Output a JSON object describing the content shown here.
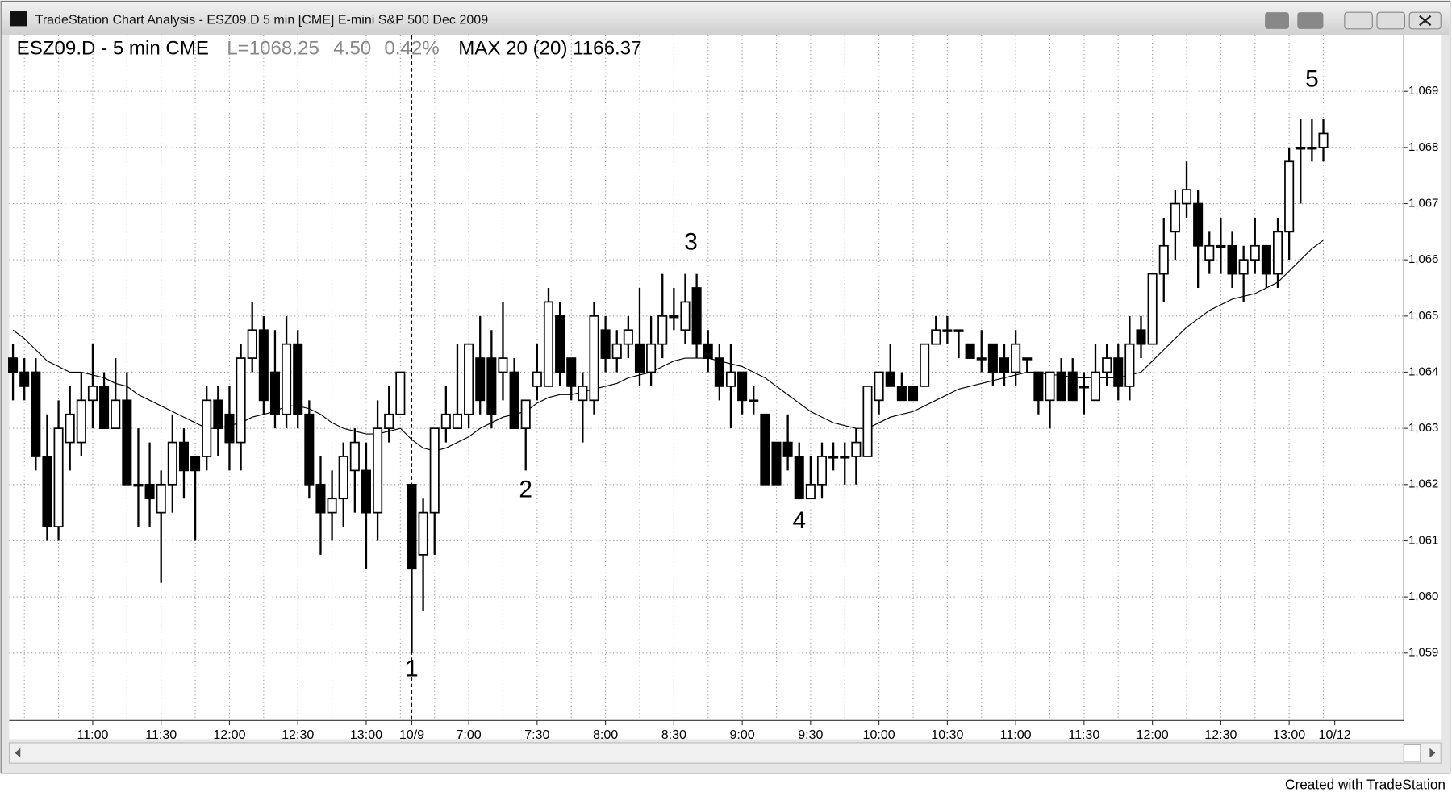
{
  "window": {
    "title": "TradeStation Chart Analysis - ESZ09.D 5 min [CME] E-mini S&P 500 Dec 2009",
    "footer": "Created with TradeStation"
  },
  "chart_data": {
    "type": "candlestick",
    "header": {
      "symbol": "ESZ09.D - 5 min CME",
      "last": "L=1068.25",
      "change": "4.50",
      "change_pct": "0.42%",
      "indicator": "MAX 20 (20) 1166.37"
    },
    "categories": [
      null,
      null,
      null,
      null,
      null,
      null,
      null,
      "11:00",
      null,
      null,
      null,
      null,
      null,
      "11:30",
      null,
      null,
      null,
      null,
      null,
      "12:00",
      null,
      null,
      null,
      null,
      null,
      "12:30",
      null,
      null,
      null,
      null,
      null,
      "13:00",
      null,
      null,
      null,
      "10/9",
      null,
      null,
      null,
      null,
      "7:00",
      null,
      null,
      null,
      null,
      null,
      "7:30",
      null,
      null,
      null,
      null,
      null,
      "8:00",
      null,
      null,
      null,
      null,
      null,
      "8:30",
      null,
      null,
      null,
      null,
      null,
      "9:00",
      null,
      null,
      null,
      null,
      null,
      "9:30",
      null,
      null,
      null,
      null,
      null,
      "10:00",
      null,
      null,
      null,
      null,
      null,
      "10:30",
      null,
      null,
      null,
      null,
      null,
      "11:00",
      null,
      null,
      null,
      null,
      null,
      "11:30",
      null,
      null,
      null,
      null,
      null,
      "12:00",
      null,
      null,
      null,
      null,
      null,
      "12:30",
      null,
      null,
      null,
      null,
      null,
      "13:00",
      null,
      null,
      null,
      "10/12"
    ],
    "ohlc": {
      "open": [
        1064.25,
        1064,
        1064,
        1062.5,
        1061.25,
        1062.75,
        1062.75,
        1063.5,
        1063.75,
        1063,
        1063.5,
        1062,
        1062,
        1061.5,
        1062,
        1062.75,
        1062.5,
        1062.5,
        1063.5,
        1063.25,
        1062.75,
        1064.25,
        1064.75,
        1064,
        1063.25,
        1064.5,
        1063.25,
        1062,
        1061.5,
        1061.75,
        1062.25,
        1062.25,
        1061.5,
        1063,
        1063.25,
        1062,
        1060.75,
        1061.5,
        1063,
        1063,
        1063.25,
        1064.25,
        1064.25,
        1064,
        1064,
        1063,
        1063.75,
        1063.75,
        1065,
        1064.25,
        1063.5,
        1063.5,
        1064.75,
        1064.25,
        1064.5,
        1064.5,
        1064,
        1064.5,
        1065,
        1064.75,
        1065.5,
        1064.5,
        1064.25,
        1063.75,
        1064,
        1063.5,
        1063.25,
        1062.75,
        1062.75,
        1062.5,
        1061.75,
        1062,
        1062.5,
        1062.5,
        1062.5,
        1062.5,
        1063.5,
        1064,
        1063.75,
        1063.75,
        1063.75,
        1064.5,
        1064.75,
        1064.75,
        1064.5,
        1064.25,
        1064.5,
        1064.25,
        1064,
        1064.25,
        1064,
        1063.5,
        1064,
        1064,
        1063.75,
        1063.5,
        1064,
        1064.25,
        1063.75,
        1064.75,
        1064.5,
        1065.75,
        1066.5,
        1067,
        1067,
        1066,
        1066.25,
        1066.25,
        1065.75,
        1066,
        1066.25,
        1065.75,
        1066.5,
        1068,
        1068,
        1068,
        null
      ],
      "high": [
        1064.5,
        1064.25,
        1064.25,
        1063.25,
        1063.5,
        1063.75,
        1064,
        1064.5,
        1064,
        1064.25,
        1064,
        1063,
        1062.75,
        1062.25,
        1063.25,
        1063,
        1062.5,
        1063.75,
        1063.75,
        1063.75,
        1064.5,
        1065.25,
        1065,
        1064.75,
        1065,
        1064.75,
        1063.5,
        1062.5,
        1062.25,
        1062.75,
        1063,
        1062.75,
        1063.5,
        1063.75,
        1064,
        1062,
        1061.75,
        1063,
        1063.75,
        1064.5,
        1064.5,
        1065,
        1064.75,
        1065.25,
        1064.25,
        1063.5,
        1064.5,
        1065.5,
        1065.25,
        1064.25,
        1064,
        1065.25,
        1065,
        1064.75,
        1065,
        1065.5,
        1065,
        1065.75,
        1065.5,
        1065.75,
        1065.75,
        1064.75,
        1064.5,
        1064.5,
        1064,
        1063.75,
        1063.25,
        1062.75,
        1063.25,
        1062.75,
        1062.5,
        1062.75,
        1062.75,
        1062.75,
        1063,
        1063.75,
        1064,
        1064.5,
        1064,
        1063.75,
        1064.5,
        1065,
        1065,
        1064.75,
        1064.5,
        1064.75,
        1064.5,
        1064.5,
        1064.75,
        1064.25,
        1064,
        1064,
        1064.25,
        1064.25,
        1064,
        1064.5,
        1064.5,
        1064.5,
        1065,
        1065,
        1065.75,
        1066.75,
        1067.25,
        1067.75,
        1067.25,
        1066.5,
        1066.75,
        1066.5,
        1066.25,
        1066.75,
        1066.25,
        1066.75,
        1068,
        1068.5,
        1068.5,
        1068.5,
        null
      ],
      "low": [
        1063.5,
        1063.5,
        1062.25,
        1061,
        1061,
        1062.25,
        1062.5,
        1063,
        1063,
        1063,
        1062,
        1061.25,
        1061.25,
        1060.25,
        1061.5,
        1061.75,
        1061,
        1062.25,
        1062.5,
        1062.25,
        1062.25,
        1064,
        1063.25,
        1063,
        1063,
        1063,
        1061.75,
        1060.75,
        1061,
        1061.25,
        1061.5,
        1060.5,
        1061,
        1062.75,
        1063.25,
        1059,
        1059.75,
        1060.75,
        1062.75,
        1063,
        1063,
        1063.25,
        1063,
        1063.5,
        1063,
        1062.25,
        1063.5,
        1063.75,
        1063.75,
        1063.5,
        1062.75,
        1063.25,
        1064,
        1064,
        1064.25,
        1063.75,
        1063.75,
        1064.25,
        1064.75,
        1064.5,
        1064.25,
        1064,
        1063.5,
        1063,
        1063.25,
        1063.25,
        1062,
        1062,
        1062.25,
        1061.75,
        1061.75,
        1061.75,
        1062.25,
        1062,
        1062,
        1062.5,
        1063.25,
        1063.75,
        1063.5,
        1063.5,
        1063.75,
        1064.5,
        1064.5,
        1064.25,
        1064.25,
        1064,
        1063.75,
        1063.75,
        1063.75,
        1064,
        1063.25,
        1063,
        1063.5,
        1063.5,
        1063.25,
        1063.5,
        1063.75,
        1063.5,
        1063.5,
        1064.25,
        1064.5,
        1065.25,
        1066,
        1066.75,
        1065.5,
        1065.75,
        1065.75,
        1065.5,
        1065.25,
        1065.75,
        1065.5,
        1065.5,
        1066,
        1067,
        1067.75,
        1067.75,
        null
      ],
      "close": [
        1064,
        1063.75,
        1062.5,
        1061.25,
        1063,
        1063.25,
        1063.5,
        1063.75,
        1063,
        1063.5,
        1062,
        1062,
        1061.75,
        1062,
        1062.75,
        1062.25,
        1062.25,
        1063.5,
        1063,
        1062.75,
        1064.25,
        1064.75,
        1063.5,
        1063.25,
        1064.5,
        1063.25,
        1062,
        1061.5,
        1061.75,
        1062.5,
        1062.75,
        1061.5,
        1063,
        1063.25,
        1064,
        1060.5,
        1061.5,
        1063,
        1063.25,
        1063.25,
        1064.5,
        1063.5,
        1063.25,
        1064.25,
        1063,
        1063.5,
        1064,
        1065.25,
        1064,
        1063.75,
        1063.75,
        1065,
        1064.25,
        1064.5,
        1064.75,
        1064,
        1064.5,
        1065,
        1065,
        1065.25,
        1064.5,
        1064.25,
        1063.75,
        1064,
        1063.5,
        1063.5,
        1062,
        1062,
        1062.5,
        1061.75,
        1062,
        1062.5,
        1062.5,
        1062.5,
        1062.75,
        1063.75,
        1064,
        1063.75,
        1063.5,
        1063.5,
        1064.5,
        1064.75,
        1064.75,
        1064.75,
        1064.25,
        1064.25,
        1064,
        1064,
        1064.5,
        1064.25,
        1063.5,
        1064,
        1063.5,
        1063.5,
        1063.75,
        1064,
        1064.25,
        1063.75,
        1064.5,
        1064.5,
        1065.75,
        1066.25,
        1067,
        1067.25,
        1066.25,
        1066.25,
        1066.25,
        1065.75,
        1066,
        1066.25,
        1065.75,
        1066.5,
        1067.75,
        1068,
        1068,
        1068.25,
        null
      ],
      "up_fill": "#ffffff",
      "down_fill": "#000000",
      "color": "#000000"
    },
    "ma": {
      "color": "#000000",
      "values": [
        1064.75,
        1064.6,
        1064.4,
        1064.2,
        1064.1,
        1064,
        1064,
        1063.95,
        1063.9,
        1063.8,
        1063.75,
        1063.6,
        1063.5,
        1063.4,
        1063.3,
        1063.2,
        1063.1,
        1063,
        1063,
        1063.05,
        1063.1,
        1063.2,
        1063.25,
        1063.3,
        1063.4,
        1063.4,
        1063.35,
        1063.25,
        1063.1,
        1063,
        1062.95,
        1062.9,
        1062.9,
        1062.95,
        1063,
        1062.8,
        1062.65,
        1062.6,
        1062.65,
        1062.75,
        1062.85,
        1063,
        1063.1,
        1063.2,
        1063.25,
        1063.3,
        1063.45,
        1063.55,
        1063.6,
        1063.6,
        1063.65,
        1063.7,
        1063.75,
        1063.8,
        1063.9,
        1063.95,
        1064,
        1064.1,
        1064.2,
        1064.25,
        1064.25,
        1064.25,
        1064.2,
        1064.15,
        1064.1,
        1064,
        1063.9,
        1063.75,
        1063.6,
        1063.45,
        1063.3,
        1063.2,
        1063.1,
        1063.05,
        1063,
        1063,
        1063.1,
        1063.2,
        1063.25,
        1063.3,
        1063.4,
        1063.5,
        1063.6,
        1063.7,
        1063.75,
        1063.8,
        1063.85,
        1063.9,
        1063.95,
        1064,
        1064,
        1063.95,
        1063.95,
        1063.9,
        1063.9,
        1063.9,
        1063.9,
        1063.9,
        1063.95,
        1064,
        1064.2,
        1064.4,
        1064.6,
        1064.8,
        1064.95,
        1065.1,
        1065.2,
        1065.3,
        1065.35,
        1065.4,
        1065.5,
        1065.6,
        1065.8,
        1066,
        1066.2,
        1066.35,
        null
      ]
    },
    "annotations": [
      "1",
      "2",
      "3",
      "4",
      "5"
    ],
    "ylim": [
      1057.8,
      1069.6
    ],
    "yticks": [
      {
        "value": 1059,
        "label": "1,059"
      },
      {
        "value": 1060,
        "label": "1,060"
      },
      {
        "value": 1061,
        "label": "1,061"
      },
      {
        "value": 1062,
        "label": "1,062"
      },
      {
        "value": 1063,
        "label": "1,063"
      },
      {
        "value": 1064,
        "label": "1,064"
      },
      {
        "value": 1065,
        "label": "1,065"
      },
      {
        "value": 1066,
        "label": "1,066"
      },
      {
        "value": 1067,
        "label": "1,067"
      },
      {
        "value": 1068,
        "label": "1,068"
      },
      {
        "value": 1069,
        "label": "1,069"
      }
    ],
    "grid": true
  }
}
